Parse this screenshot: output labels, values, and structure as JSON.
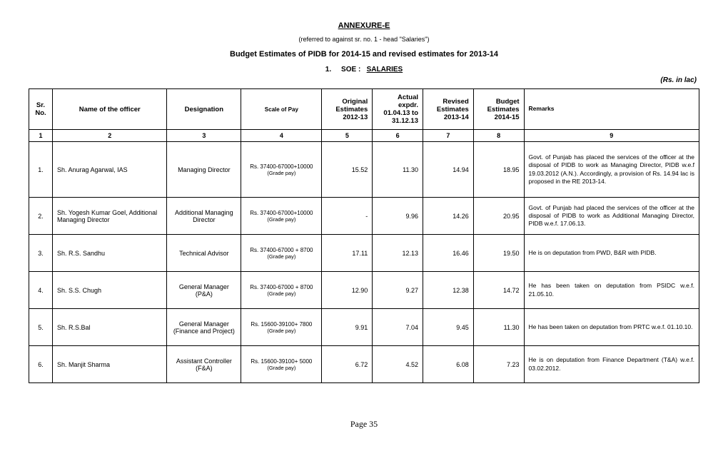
{
  "header": {
    "annexure": "ANNEXURE-E",
    "referred": "(referred to against sr. no. 1 -  head \"Salaries\")",
    "main_title": "Budget Estimates of PIDB for 2014-15 and revised estimates for 2013-14",
    "soe_num": "1.",
    "soe_label": "SOE :",
    "soe_value": "SALARIES",
    "unit": "(Rs. in lac)"
  },
  "columns": {
    "sr": "Sr. No.",
    "name": "Name of the officer",
    "desg": "Designation",
    "pay": "Scale of Pay",
    "orig": "Original Estimates 2012-13",
    "actual": "Actual expdr. 01.04.13 to 31.12.13",
    "rev": "Revised Estimates 2013-14",
    "bud": "Budget Estimates 2014-15",
    "rem": "Remarks"
  },
  "colnums": {
    "c1": "1",
    "c2": "2",
    "c3": "3",
    "c4": "4",
    "c5": "5",
    "c6": "6",
    "c7": "7",
    "c8": "8",
    "c9": "9"
  },
  "rows": {
    "r1": {
      "sr": "1.",
      "name": "Sh. Anurag Agarwal, IAS",
      "desg": "Managing Director",
      "pay": "Rs. 37400-67000+10000",
      "gp": "(Grade pay)",
      "orig": "15.52",
      "actual": "11.30",
      "rev": "14.94",
      "bud": "18.95",
      "rem": "Govt. of Punjab has placed the services of the officer at the disposal of PIDB to work as Managing Director, PIDB w.e.f 19.03.2012 (A.N.).\n        Accordingly, a provision of Rs. 14.94 lac is proposed in the RE 2013-14."
    },
    "r2": {
      "sr": "2.",
      "name": "Sh. Yogesh Kumar Goel, Additional Managing Director",
      "desg": "Additional Managing Director",
      "pay": "Rs. 37400-67000+10000",
      "gp": "(Grade pay)",
      "orig": "-",
      "actual": "9.96",
      "rev": "14.26",
      "bud": "20.95",
      "rem": "Govt. of Punjab had placed the services of the officer at the disposal of PIDB to work as Additional Managing Director, PIDB w.e.f. 17.06.13."
    },
    "r3": {
      "sr": "3.",
      "name": "Sh. R.S. Sandhu",
      "desg": "Technical Advisor",
      "pay": "Rs. 37400-67000 + 8700",
      "gp": "(Grade pay)",
      "orig": "17.11",
      "actual": "12.13",
      "rev": "16.46",
      "bud": "19.50",
      "rem": "He is on deputation from PWD, B&R with PIDB."
    },
    "r4": {
      "sr": "4.",
      "name": "Sh. S.S. Chugh",
      "desg": "General Manager (P&A)",
      "pay": "Rs. 37400-67000 + 8700",
      "gp": "(Grade pay)",
      "orig": "12.90",
      "actual": "9.27",
      "rev": "12.38",
      "bud": "14.72",
      "rem": "He has been taken on deputation from PSIDC w.e.f. 21.05.10."
    },
    "r5": {
      "sr": "5.",
      "name": "Sh. R.S.Bal",
      "desg": "General Manager (Finance and Project)",
      "pay": "Rs. 15600-39100+ 7800",
      "gp": "(Grade pay)",
      "orig": "9.91",
      "actual": "7.04",
      "rev": "9.45",
      "bud": "11.30",
      "rem": "He has been taken on deputation from PRTC w.e.f. 01.10.10."
    },
    "r6": {
      "sr": "6.",
      "name": "Sh. Manjit Sharma",
      "desg": "Assistant Controller (F&A)",
      "pay": "Rs. 15600-39100+ 5000",
      "gp": "(Grade pay)",
      "orig": "6.72",
      "actual": "4.52",
      "rev": "6.08",
      "bud": "7.23",
      "rem": "He is on deputation from Finance Department (T&A) w.e.f. 03.02.2012."
    }
  },
  "footer": {
    "page_label": "Page",
    "page_num": "35"
  }
}
